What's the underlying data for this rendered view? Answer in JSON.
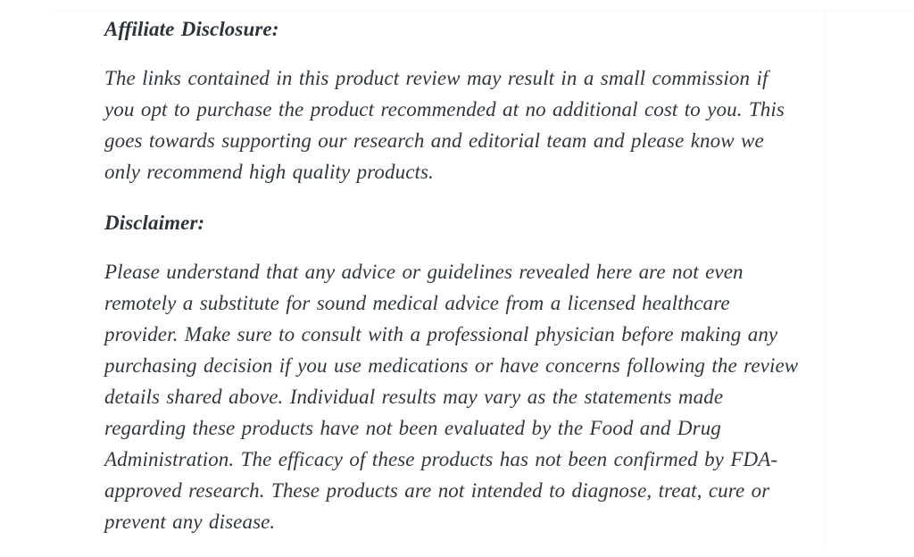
{
  "page": {
    "background_color": "#ffffff",
    "text_color": "#31373f"
  },
  "content": {
    "affiliate_heading": "Affiliate Disclosure:",
    "affiliate_paragraph": "The links contained in this product review may result in a small commission if\nyou opt to purchase the product recommended at no additional cost to you. This\ngoes towards supporting our research and editorial team and please know we\nonly recommend high quality products.",
    "disclaimer_heading": "Disclaimer:",
    "disclaimer_paragraph": "Please understand that any advice or guidelines revealed here are not even\nremotely a substitute for sound medical advice from a licensed healthcare\nprovider. Make sure to consult with a professional physician before making any\npurchasing decision if you use medications or have concerns following the review\ndetails shared above. Individual results may vary as the statements made\nregarding these products have not been evaluated by the Food and Drug\nAdministration. The efficacy of these products has not been confirmed by FDA-\napproved research. These products are not intended to diagnose, treat, cure or\nprevent any disease."
  }
}
